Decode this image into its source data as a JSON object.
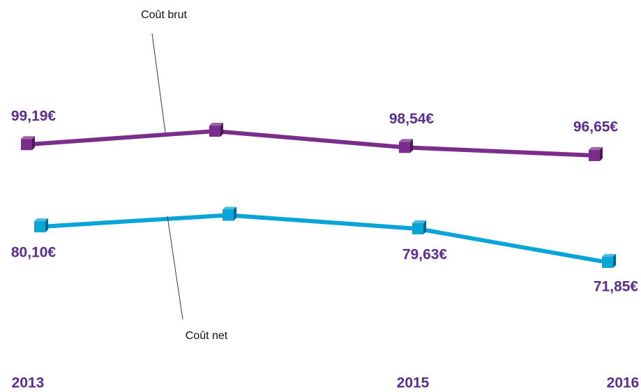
{
  "chart_data": {
    "type": "line",
    "categories": [
      "2013",
      null,
      "2015",
      "2016"
    ],
    "series": [
      {
        "name": "Coût brut",
        "color": "#7b2d8b",
        "values": [
          99.19,
          102.3,
          98.54,
          96.65
        ],
        "value_labels": [
          "99,19€",
          null,
          "98,54€",
          "96,65€"
        ]
      },
      {
        "name": "Coût net",
        "color": "#0aa5d8",
        "values": [
          80.1,
          82.8,
          79.63,
          71.85
        ],
        "value_labels": [
          "80,10€",
          null,
          "79,63€",
          "71,85€"
        ]
      }
    ],
    "ylim": [
      50,
      130
    ]
  }
}
